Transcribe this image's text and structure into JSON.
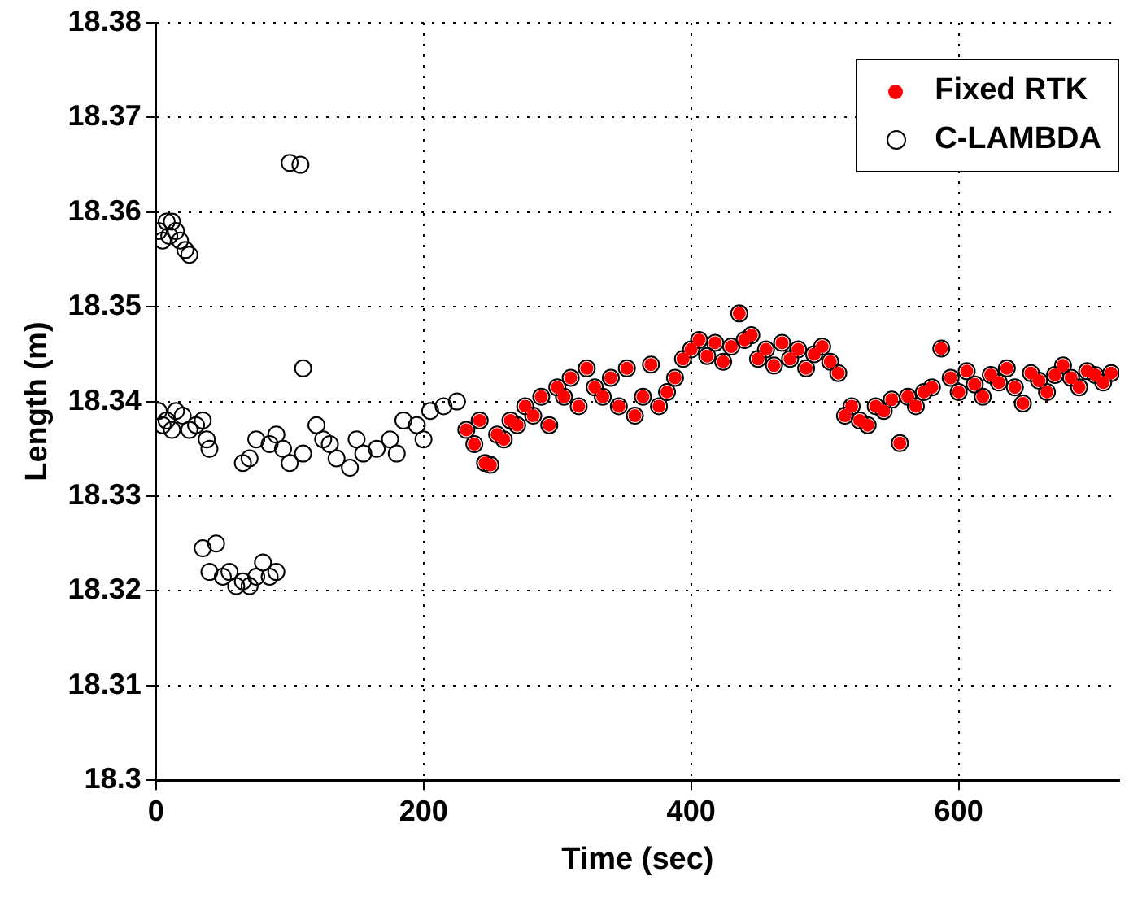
{
  "chart_data": {
    "type": "scatter",
    "xlabel": "Time (sec)",
    "ylabel": "Length (m)",
    "xlim": [
      0,
      720
    ],
    "xticks": [
      0,
      200,
      400,
      600
    ],
    "ylim": [
      18.3,
      18.38
    ],
    "yticks": [
      18.3,
      18.31,
      18.32,
      18.33,
      18.34,
      18.35,
      18.36,
      18.37,
      18.38
    ],
    "grid": true,
    "legend": "top right",
    "marker": "circle",
    "series": [
      {
        "name": "Fixed RTK",
        "color": "#ff0000",
        "x": [
          232,
          238,
          242,
          246,
          250,
          255,
          260,
          265,
          270,
          276,
          282,
          288,
          294,
          300,
          305,
          310,
          316,
          322,
          328,
          334,
          340,
          346,
          352,
          358,
          364,
          370,
          376,
          382,
          388,
          394,
          400,
          406,
          412,
          418,
          424,
          430,
          436,
          440,
          445,
          450,
          456,
          462,
          468,
          474,
          480,
          486,
          492,
          498,
          504,
          510,
          515,
          520,
          526,
          532,
          538,
          544,
          550,
          556,
          562,
          568,
          574,
          580,
          587,
          594,
          600,
          606,
          612,
          618,
          624,
          630,
          636,
          642,
          648,
          654,
          660,
          666,
          672,
          678,
          684,
          690,
          696,
          702,
          708,
          714
        ],
        "values": [
          18.337,
          18.3355,
          18.338,
          18.3335,
          18.3333,
          18.3365,
          18.336,
          18.338,
          18.3375,
          18.3395,
          18.3385,
          18.3405,
          18.3375,
          18.3415,
          18.3405,
          18.3425,
          18.3395,
          18.3435,
          18.3415,
          18.3405,
          18.3425,
          18.3395,
          18.3435,
          18.3385,
          18.3405,
          18.3439,
          18.3395,
          18.341,
          18.3425,
          18.3445,
          18.3455,
          18.3465,
          18.3448,
          18.3462,
          18.3442,
          18.3458,
          18.3493,
          18.3465,
          18.347,
          18.3445,
          18.3455,
          18.3438,
          18.3462,
          18.3445,
          18.3455,
          18.3435,
          18.345,
          18.3458,
          18.3442,
          18.343,
          18.3385,
          18.3395,
          18.338,
          18.3375,
          18.3395,
          18.339,
          18.3402,
          18.3356,
          18.3405,
          18.3395,
          18.341,
          18.3415,
          18.3456,
          18.3425,
          18.341,
          18.3432,
          18.3418,
          18.3405,
          18.3428,
          18.342,
          18.3435,
          18.3415,
          18.3398,
          18.343,
          18.3422,
          18.341,
          18.3428,
          18.3438,
          18.3425,
          18.3415,
          18.3432,
          18.3428,
          18.342,
          18.343
        ]
      },
      {
        "name": "C-LAMBDA",
        "color": "#000000",
        "x": [
          2,
          5,
          8,
          10,
          12,
          15,
          18,
          22,
          25,
          2,
          5,
          8,
          12,
          15,
          20,
          25,
          30,
          35,
          38,
          40,
          35,
          40,
          45,
          50,
          55,
          60,
          65,
          70,
          75,
          80,
          85,
          90,
          100,
          108,
          110,
          65,
          70,
          75,
          85,
          90,
          95,
          100,
          110,
          120,
          125,
          130,
          135,
          145,
          150,
          155,
          165,
          175,
          180,
          185,
          195,
          200,
          205,
          215,
          225,
          232,
          238,
          242,
          246,
          250,
          255,
          260,
          265,
          270,
          276,
          282,
          288,
          294,
          300,
          305,
          310,
          316,
          322,
          328,
          334,
          340,
          346,
          352,
          358,
          364,
          370,
          376,
          382,
          388,
          394,
          400,
          406,
          412,
          418,
          424,
          430,
          436,
          440,
          445,
          450,
          456,
          462,
          468,
          474,
          480,
          486,
          492,
          498,
          504,
          510,
          515,
          520,
          526,
          532,
          538,
          544,
          550,
          556,
          562,
          568,
          574,
          580,
          587,
          594,
          600,
          606,
          612,
          618,
          624,
          630,
          636,
          642,
          648,
          654,
          660,
          666,
          672,
          678,
          684,
          690,
          696,
          702,
          708,
          714
        ],
        "values": [
          18.358,
          18.357,
          18.359,
          18.3575,
          18.359,
          18.358,
          18.357,
          18.356,
          18.3555,
          18.339,
          18.3375,
          18.338,
          18.337,
          18.339,
          18.3385,
          18.337,
          18.3375,
          18.338,
          18.336,
          18.335,
          18.3245,
          18.322,
          18.325,
          18.3215,
          18.322,
          18.3205,
          18.321,
          18.3205,
          18.3215,
          18.323,
          18.3215,
          18.322,
          18.3652,
          18.365,
          18.3435,
          18.3335,
          18.334,
          18.336,
          18.3355,
          18.3365,
          18.335,
          18.3335,
          18.3345,
          18.3375,
          18.336,
          18.3355,
          18.334,
          18.333,
          18.336,
          18.3345,
          18.335,
          18.336,
          18.3345,
          18.338,
          18.3375,
          18.336,
          18.339,
          18.3395,
          18.34,
          18.337,
          18.3355,
          18.338,
          18.3335,
          18.3333,
          18.3365,
          18.336,
          18.338,
          18.3375,
          18.3395,
          18.3385,
          18.3405,
          18.3375,
          18.3415,
          18.3405,
          18.3425,
          18.3395,
          18.3435,
          18.3415,
          18.3405,
          18.3425,
          18.3395,
          18.3435,
          18.3385,
          18.3405,
          18.3439,
          18.3395,
          18.341,
          18.3425,
          18.3445,
          18.3455,
          18.3465,
          18.3448,
          18.3462,
          18.3442,
          18.3458,
          18.3493,
          18.3465,
          18.347,
          18.3445,
          18.3455,
          18.3438,
          18.3462,
          18.3445,
          18.3455,
          18.3435,
          18.345,
          18.3458,
          18.3442,
          18.343,
          18.3385,
          18.3395,
          18.338,
          18.3375,
          18.3395,
          18.339,
          18.3402,
          18.3356,
          18.3405,
          18.3395,
          18.341,
          18.3415,
          18.3456,
          18.3425,
          18.341,
          18.3432,
          18.3418,
          18.3405,
          18.3428,
          18.342,
          18.3435,
          18.3415,
          18.3398,
          18.343,
          18.3422,
          18.341,
          18.3428,
          18.3438,
          18.3425,
          18.3415,
          18.3432,
          18.3428,
          18.342,
          18.343
        ]
      }
    ]
  }
}
